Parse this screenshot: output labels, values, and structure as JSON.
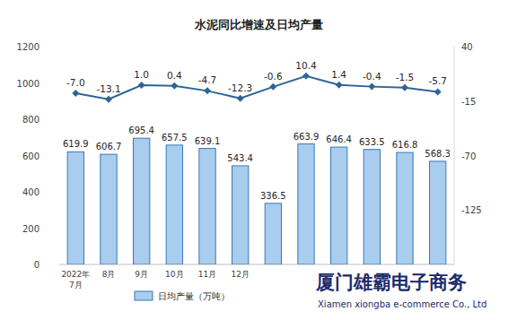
{
  "chart_data": {
    "type": "bar",
    "title": "水泥同比增速及日均产量",
    "categories": [
      "2022年7月",
      "8月",
      "9月",
      "10月",
      "11月",
      "12月",
      null,
      null,
      null,
      null,
      null,
      null
    ],
    "series": [
      {
        "name": "日均产量（万吨）",
        "type": "bar",
        "color": "#a9cdee",
        "values": [
          619.9,
          606.7,
          695.4,
          657.5,
          639.1,
          543.4,
          336.5,
          663.9,
          646.4,
          633.5,
          616.8,
          568.3
        ]
      },
      {
        "type": "line",
        "axis": "y2",
        "color": "#2e6496",
        "marker": "diamond",
        "values": [
          -7.0,
          -13.1,
          1.0,
          0.4,
          -4.7,
          -12.3,
          -0.6,
          10.4,
          1.4,
          -0.4,
          -1.5,
          -5.7
        ],
        "value_labels": [
          "-7.0",
          "-13.1",
          "1.0",
          "0.4",
          "-4.7",
          "-12.3",
          "-0.6",
          "10.4",
          "1.4",
          "-0.4",
          "-1.5",
          "-5.7"
        ]
      }
    ],
    "ylim": [
      0,
      1200
    ],
    "yticks": [
      0,
      200,
      400,
      600,
      800,
      1000,
      1200
    ],
    "y2lim": [
      -180,
      40
    ],
    "y2ticks": [
      -125,
      -70,
      -15,
      40
    ],
    "data_labels": true,
    "grid": false,
    "legend": "bottom",
    "annotations": [
      "厦门雄霸电子商务",
      "Xiamen xiongba e-commerce Co., Ltd"
    ]
  }
}
